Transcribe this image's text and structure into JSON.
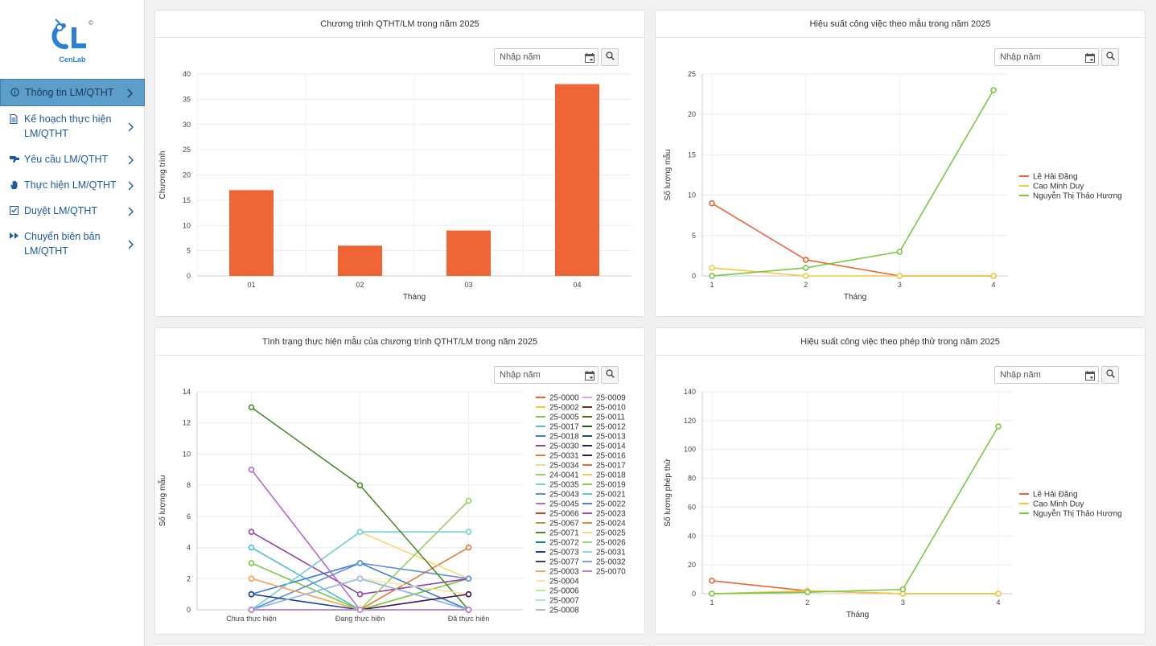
{
  "brand": {
    "logo_text": "CenLab",
    "copyright": "©"
  },
  "sidebar": {
    "items": [
      {
        "label": "Thông tin LM/QTHT",
        "icon": "info-icon",
        "active": true
      },
      {
        "label": "Kế hoạch thực hiện LM/QTHT",
        "icon": "document-icon",
        "active": false
      },
      {
        "label": "Yêu cầu LM/QTHT",
        "icon": "request-hand-icon",
        "active": false
      },
      {
        "label": "Thực hiện LM/QTHT",
        "icon": "hand-icon",
        "active": false
      },
      {
        "label": "Duyệt LM/QTHT",
        "icon": "approve-icon",
        "active": false
      },
      {
        "label": "Chuyển biên bản LM/QTHT",
        "icon": "forward-icon",
        "active": false
      }
    ]
  },
  "year_filter": {
    "placeholder": "Nhập năm"
  },
  "colors": {
    "orange": "#f06535",
    "yellow": "#f5c842",
    "green": "#7ac943",
    "accent": "#5c9ec9"
  },
  "chart_data": [
    {
      "id": "programs",
      "type": "bar",
      "title": "Chương trình QTHT/LM trong năm 2025",
      "xlabel": "Tháng",
      "ylabel": "Chương trình",
      "categories": [
        "01",
        "02",
        "03",
        "04"
      ],
      "values": [
        17,
        6,
        9,
        38
      ],
      "ylim": [
        0,
        40
      ],
      "yticks": [
        0,
        5,
        10,
        15,
        20,
        25,
        30,
        35,
        40
      ],
      "color": "#f06535",
      "grid": true
    },
    {
      "id": "sample-performance",
      "type": "line",
      "title": "Hiệu suất công việc theo mẫu trong năm 2025",
      "xlabel": "Tháng",
      "ylabel": "Số lượng mẫu",
      "x": [
        1,
        2,
        3,
        4
      ],
      "ylim": [
        0,
        25
      ],
      "yticks": [
        0,
        5,
        10,
        15,
        20,
        25
      ],
      "legend_position": "right",
      "series": [
        {
          "name": "Lê Hải Đăng",
          "color": "#e8643c",
          "values": [
            9,
            2,
            0,
            0
          ]
        },
        {
          "name": "Cao Minh Duy",
          "color": "#f5c842",
          "values": [
            1,
            0,
            0,
            0
          ]
        },
        {
          "name": "Nguyễn Thị Thảo Hương",
          "color": "#7ac943",
          "values": [
            0,
            1,
            3,
            23
          ]
        }
      ]
    },
    {
      "id": "sample-status",
      "type": "line",
      "title": "Tình trạng thực hiện mẫu của chương trình QTHT/LM trong năm 2025",
      "xlabel": "",
      "ylabel": "Số lượng mẫu",
      "categories": [
        "Chưa thực hiện",
        "Đang thực hiện",
        "Đã thực hiện"
      ],
      "ylim": [
        0,
        14
      ],
      "yticks": [
        0,
        2,
        4,
        6,
        8,
        10,
        12,
        14
      ],
      "legend_position": "right",
      "series": [
        {
          "name": "25-0000",
          "color": "#e8643c",
          "values": [
            0,
            0,
            0
          ]
        },
        {
          "name": "25-0002",
          "color": "#f5c842",
          "values": [
            2,
            0,
            2
          ]
        },
        {
          "name": "25-0005",
          "color": "#7ac943",
          "values": [
            3,
            0,
            2
          ]
        },
        {
          "name": "25-0017",
          "color": "#4fc1c9",
          "values": [
            4,
            0,
            0
          ]
        },
        {
          "name": "25-0018",
          "color": "#3a7dd8",
          "values": [
            1,
            3,
            0
          ]
        },
        {
          "name": "25-0030",
          "color": "#8e44ad",
          "values": [
            5,
            1,
            2
          ]
        },
        {
          "name": "25-0031",
          "color": "#e07b39",
          "values": [
            0,
            0,
            4
          ]
        },
        {
          "name": "25-0034",
          "color": "#f7d774",
          "values": [
            0,
            5,
            2
          ]
        },
        {
          "name": "24-0041",
          "color": "#9ccc65",
          "values": [
            0,
            0,
            7
          ]
        },
        {
          "name": "25-0035",
          "color": "#6fd3d8",
          "values": [
            0,
            5,
            5
          ]
        },
        {
          "name": "25-0043",
          "color": "#5b8fe0",
          "values": [
            0,
            3,
            2
          ]
        },
        {
          "name": "25-0045",
          "color": "#b36ad1",
          "values": [
            9,
            0,
            0
          ]
        },
        {
          "name": "25-0066",
          "color": "#b5482a",
          "values": [
            0,
            0,
            0
          ]
        },
        {
          "name": "25-0067",
          "color": "#b89a2a",
          "values": [
            0,
            0,
            0
          ]
        },
        {
          "name": "25-0071",
          "color": "#4d8b2a",
          "values": [
            13,
            8,
            0
          ]
        },
        {
          "name": "25-0072",
          "color": "#1f7a84",
          "values": [
            0,
            2,
            0
          ]
        },
        {
          "name": "25-0073",
          "color": "#1b3f8f",
          "values": [
            1,
            0,
            0
          ]
        },
        {
          "name": "25-0077",
          "color": "#5e2a7a",
          "values": [
            0,
            0,
            0
          ]
        },
        {
          "name": "25-0003",
          "color": "#f3a35c",
          "values": [
            2,
            0,
            0
          ]
        },
        {
          "name": "25-0004",
          "color": "#f9e7a0",
          "values": [
            0,
            2,
            1
          ]
        },
        {
          "name": "25-0006",
          "color": "#c6e6a0",
          "values": [
            0,
            0,
            0
          ]
        },
        {
          "name": "25-0007",
          "color": "#a8e3e6",
          "values": [
            0,
            0,
            0
          ]
        },
        {
          "name": "25-0008",
          "color": "#9bb8ee",
          "values": [
            0,
            2,
            0
          ]
        },
        {
          "name": "25-0009",
          "color": "#d8a6e8",
          "values": [
            0,
            0,
            0
          ]
        },
        {
          "name": "25-0010",
          "color": "#7a2a14",
          "values": [
            0,
            0,
            0
          ]
        },
        {
          "name": "25-0011",
          "color": "#6b5a14",
          "values": [
            0,
            0,
            0
          ]
        },
        {
          "name": "25-0012",
          "color": "#2a5a14",
          "values": [
            0,
            0,
            0
          ]
        },
        {
          "name": "25-0013",
          "color": "#145a5e",
          "values": [
            0,
            0,
            0
          ]
        },
        {
          "name": "25-0014",
          "color": "#142a5e",
          "values": [
            0,
            0,
            0
          ]
        },
        {
          "name": "25-0016",
          "color": "#3a1450",
          "values": [
            0,
            0,
            1
          ]
        },
        {
          "name": "25-0017",
          "color": "#f06a3a",
          "values": [
            0,
            0,
            0
          ]
        },
        {
          "name": "25-0018",
          "color": "#f2cc5a",
          "values": [
            0,
            0,
            0
          ]
        },
        {
          "name": "25-0019",
          "color": "#86d24e",
          "values": [
            0,
            0,
            0
          ]
        },
        {
          "name": "25-0021",
          "color": "#5cc8d0",
          "values": [
            0,
            0,
            0
          ]
        },
        {
          "name": "25-0022",
          "color": "#4a86e0",
          "values": [
            0,
            0,
            0
          ]
        },
        {
          "name": "25-0023",
          "color": "#9b50c0",
          "values": [
            0,
            0,
            0
          ]
        },
        {
          "name": "25-0024",
          "color": "#e8893c",
          "values": [
            0,
            0,
            0
          ]
        },
        {
          "name": "25-0025",
          "color": "#f5dc80",
          "values": [
            0,
            0,
            0
          ]
        },
        {
          "name": "25-0026",
          "color": "#a6d878",
          "values": [
            0,
            0,
            0
          ]
        },
        {
          "name": "25-0031",
          "color": "#86d8dc",
          "values": [
            0,
            0,
            0
          ]
        },
        {
          "name": "25-0032",
          "color": "#7aa2e8",
          "values": [
            0,
            0,
            0
          ]
        },
        {
          "name": "25-0070",
          "color": "#c080d8",
          "values": [
            0,
            0,
            0
          ]
        }
      ]
    },
    {
      "id": "test-performance",
      "type": "line",
      "title": "Hiệu suất công việc theo phép thử trong năm 2025",
      "xlabel": "Tháng",
      "ylabel": "Số lượng phép thử",
      "x": [
        1,
        2,
        3,
        4
      ],
      "ylim": [
        0,
        140
      ],
      "yticks": [
        0,
        20,
        40,
        60,
        80,
        100,
        120,
        140
      ],
      "legend_position": "right",
      "series": [
        {
          "name": "Lê Hải Đăng",
          "color": "#e8643c",
          "values": [
            9,
            2,
            0,
            0
          ]
        },
        {
          "name": "Cao Minh Duy",
          "color": "#f5c842",
          "values": [
            0,
            2,
            0,
            0
          ]
        },
        {
          "name": "Nguyễn Thị Thảo Hương",
          "color": "#7ac943",
          "values": [
            0,
            1,
            3,
            116
          ]
        }
      ]
    }
  ]
}
